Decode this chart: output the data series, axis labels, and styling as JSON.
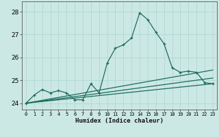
{
  "xlabel": "Humidex (Indice chaleur)",
  "bg_color": "#cce8e4",
  "grid_color": "#b0d8d0",
  "line_color": "#1a6b5a",
  "xlim": [
    -0.5,
    23.5
  ],
  "ylim": [
    23.72,
    28.45
  ],
  "yticks": [
    24,
    25,
    26,
    27,
    28
  ],
  "xticks": [
    0,
    1,
    2,
    3,
    4,
    5,
    6,
    7,
    8,
    9,
    10,
    11,
    12,
    13,
    14,
    15,
    16,
    17,
    18,
    19,
    20,
    21,
    22,
    23
  ],
  "series1_x": [
    0,
    1,
    2,
    3,
    4,
    5,
    6,
    7,
    8,
    9,
    10,
    11,
    12,
    13,
    14,
    15,
    16,
    17,
    18,
    19,
    20,
    21,
    22,
    23
  ],
  "series1_y": [
    24.0,
    24.35,
    24.6,
    24.45,
    24.55,
    24.45,
    24.15,
    24.15,
    24.85,
    24.45,
    25.75,
    26.4,
    26.55,
    26.85,
    27.95,
    27.65,
    27.1,
    26.6,
    25.55,
    25.35,
    25.4,
    25.35,
    24.9,
    24.85
  ],
  "series2_x": [
    0,
    23
  ],
  "series2_y": [
    24.0,
    24.85
  ],
  "series3_x": [
    0,
    23
  ],
  "series3_y": [
    24.0,
    25.1
  ],
  "series4_x": [
    0,
    23
  ],
  "series4_y": [
    24.0,
    25.45
  ]
}
